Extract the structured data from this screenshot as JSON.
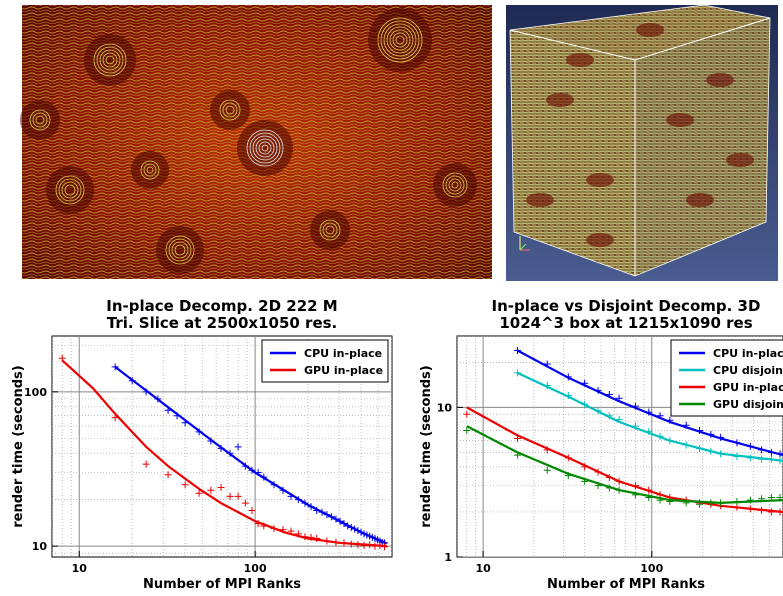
{
  "images": {
    "left_alt": "2D line integral convolution slice of turbulent flow",
    "right_alt": "3D cube rendered with line integral convolution texture",
    "colors": {
      "dark": "#3a0000",
      "red": "#b01800",
      "yellow": "#d8c040",
      "white": "#f0f0f0",
      "bg3d": "#3a4a78"
    }
  },
  "chart_data": [
    {
      "type": "scatter",
      "title": [
        "In-place Decomp. 2D 222 M",
        "Tri. Slice at 2500x1050 res."
      ],
      "xlabel": "Number of MPI Ranks",
      "ylabel": "render time (seconds)",
      "xscale": "log",
      "yscale": "log",
      "xlim": [
        7,
        600
      ],
      "ylim": [
        8.5,
        230
      ],
      "xticks": [
        {
          "value": 10,
          "label": "10"
        },
        {
          "value": 100,
          "label": "100"
        }
      ],
      "yticks": [
        {
          "value": 10,
          "label": "10"
        },
        {
          "value": 100,
          "label": "100"
        }
      ],
      "grid": true,
      "legend_position": "top-right",
      "series": [
        {
          "name": "CPU in-place",
          "color": "#0000ee",
          "points": [
            [
              16,
              145
            ],
            [
              20,
              118
            ],
            [
              24,
              100
            ],
            [
              28,
              90
            ],
            [
              32,
              76
            ],
            [
              36,
              70
            ],
            [
              40,
              63
            ],
            [
              48,
              55
            ],
            [
              56,
              48
            ],
            [
              64,
              43
            ],
            [
              72,
              40
            ],
            [
              80,
              44
            ],
            [
              88,
              33
            ],
            [
              96,
              31
            ],
            [
              104,
              30
            ],
            [
              112,
              28
            ],
            [
              128,
              25
            ],
            [
              144,
              23
            ],
            [
              160,
              21
            ],
            [
              176,
              20
            ],
            [
              192,
              19
            ],
            [
              208,
              18
            ],
            [
              224,
              17
            ],
            [
              240,
              16.6
            ],
            [
              256,
              16
            ],
            [
              272,
              15.5
            ],
            [
              288,
              15
            ],
            [
              304,
              14.5
            ],
            [
              320,
              14
            ],
            [
              336,
              13.5
            ],
            [
              352,
              13.2
            ],
            [
              368,
              12.9
            ],
            [
              384,
              12.6
            ],
            [
              400,
              12.3
            ],
            [
              416,
              12
            ],
            [
              432,
              11.8
            ],
            [
              448,
              11.6
            ],
            [
              464,
              11.4
            ],
            [
              480,
              11.2
            ],
            [
              496,
              11
            ],
            [
              512,
              10.8
            ],
            [
              528,
              10.6
            ],
            [
              544,
              10.5
            ]
          ],
          "fit": [
            [
              16,
              145
            ],
            [
              30,
              84
            ],
            [
              60,
              46
            ],
            [
              100,
              30
            ],
            [
              200,
              18.5
            ],
            [
              400,
              12.3
            ],
            [
              560,
              10.4
            ]
          ]
        },
        {
          "name": "GPU in-place",
          "color": "#ee0000",
          "points": [
            [
              8,
              165
            ],
            [
              16,
              68
            ],
            [
              24,
              34
            ],
            [
              32,
              29
            ],
            [
              40,
              25
            ],
            [
              48,
              22
            ],
            [
              56,
              23
            ],
            [
              64,
              24
            ],
            [
              72,
              21
            ],
            [
              80,
              21
            ],
            [
              88,
              19
            ],
            [
              96,
              17
            ],
            [
              104,
              14
            ],
            [
              112,
              13.5
            ],
            [
              128,
              13
            ],
            [
              144,
              12.8
            ],
            [
              160,
              12.5
            ],
            [
              176,
              12
            ],
            [
              192,
              11.5
            ],
            [
              208,
              11.4
            ],
            [
              224,
              11.2
            ],
            [
              256,
              10.8
            ],
            [
              288,
              10.6
            ],
            [
              320,
              10.5
            ],
            [
              352,
              10.3
            ],
            [
              384,
              10.2
            ],
            [
              416,
              10.1
            ],
            [
              448,
              10.2
            ],
            [
              480,
              10
            ],
            [
              512,
              10.1
            ],
            [
              544,
              9.9
            ]
          ],
          "fit": [
            [
              8,
              160
            ],
            [
              12,
              105
            ],
            [
              16,
              72
            ],
            [
              24,
              44
            ],
            [
              32,
              33
            ],
            [
              48,
              23.5
            ],
            [
              64,
              19
            ],
            [
              100,
              14.5
            ],
            [
              150,
              12.2
            ],
            [
              200,
              11.2
            ],
            [
              300,
              10.5
            ],
            [
              560,
              10
            ]
          ]
        }
      ]
    },
    {
      "type": "scatter",
      "title": [
        "In-place vs Disjoint Decomp. 3D",
        "1024^3 box at 1215x1090 res"
      ],
      "xlabel": "Number of MPI Ranks",
      "ylabel": "render time (seconds)",
      "xscale": "log",
      "yscale": "log",
      "xlim": [
        7,
        600
      ],
      "ylim": [
        1,
        30
      ],
      "xticks": [
        {
          "value": 10,
          "label": "10"
        },
        {
          "value": 100,
          "label": "100"
        }
      ],
      "yticks": [
        {
          "value": 1,
          "label": "1"
        },
        {
          "value": 10,
          "label": "10"
        }
      ],
      "grid": true,
      "legend_position": "top-right",
      "series": [
        {
          "name": "CPU in-place",
          "color": "#0000ee",
          "points": [
            [
              16,
              24
            ],
            [
              24,
              19.5
            ],
            [
              32,
              16
            ],
            [
              40,
              14.5
            ],
            [
              48,
              13
            ],
            [
              56,
              12.2
            ],
            [
              64,
              11.5
            ],
            [
              80,
              10.2
            ],
            [
              96,
              9.3
            ],
            [
              112,
              8.8
            ],
            [
              128,
              8.2
            ],
            [
              160,
              7.6
            ],
            [
              192,
              7
            ],
            [
              224,
              6.6
            ],
            [
              256,
              6.3
            ],
            [
              320,
              5.8
            ],
            [
              384,
              5.5
            ],
            [
              448,
              5.2
            ],
            [
              512,
              5
            ],
            [
              576,
              4.9
            ]
          ],
          "fit": [
            [
              16,
              24
            ],
            [
              32,
              15.8
            ],
            [
              64,
              11
            ],
            [
              128,
              8
            ],
            [
              256,
              6.2
            ],
            [
              600,
              4.8
            ]
          ]
        },
        {
          "name": "CPU disjoint",
          "color": "#00c0c0",
          "points": [
            [
              16,
              17
            ],
            [
              24,
              14
            ],
            [
              32,
              12
            ],
            [
              40,
              10.5
            ],
            [
              48,
              9.5
            ],
            [
              56,
              8.8
            ],
            [
              64,
              8.3
            ],
            [
              80,
              7.5
            ],
            [
              96,
              6.9
            ],
            [
              112,
              6.4
            ],
            [
              128,
              6
            ],
            [
              160,
              5.6
            ],
            [
              192,
              5.3
            ],
            [
              224,
              5.1
            ],
            [
              256,
              4.9
            ],
            [
              320,
              4.7
            ],
            [
              384,
              4.6
            ],
            [
              448,
              4.5
            ],
            [
              512,
              4.5
            ],
            [
              576,
              4.4
            ]
          ],
          "fit": [
            [
              16,
              17
            ],
            [
              32,
              11.8
            ],
            [
              64,
              8
            ],
            [
              128,
              6
            ],
            [
              256,
              4.9
            ],
            [
              600,
              4.4
            ]
          ]
        },
        {
          "name": "GPU in-place",
          "color": "#ee0000",
          "points": [
            [
              8,
              9
            ],
            [
              16,
              6.2
            ],
            [
              24,
              5.2
            ],
            [
              32,
              4.6
            ],
            [
              40,
              4
            ],
            [
              48,
              3.7
            ],
            [
              56,
              3.4
            ],
            [
              64,
              3.2
            ],
            [
              80,
              3
            ],
            [
              96,
              2.8
            ],
            [
              112,
              2.6
            ],
            [
              128,
              2.5
            ],
            [
              160,
              2.4
            ],
            [
              192,
              2.3
            ],
            [
              224,
              2.25
            ],
            [
              256,
              2.2
            ],
            [
              320,
              2.15
            ],
            [
              384,
              2.1
            ],
            [
              448,
              2.05
            ],
            [
              512,
              2
            ],
            [
              576,
              2
            ]
          ],
          "fit": [
            [
              8,
              10
            ],
            [
              16,
              6.5
            ],
            [
              32,
              4.6
            ],
            [
              64,
              3.2
            ],
            [
              128,
              2.5
            ],
            [
              256,
              2.2
            ],
            [
              600,
              2
            ]
          ]
        },
        {
          "name": "GPU disjoint",
          "color": "#008800",
          "points": [
            [
              8,
              7
            ],
            [
              16,
              4.8
            ],
            [
              24,
              3.8
            ],
            [
              32,
              3.5
            ],
            [
              40,
              3.2
            ],
            [
              48,
              3
            ],
            [
              56,
              2.9
            ],
            [
              64,
              2.8
            ],
            [
              80,
              2.6
            ],
            [
              96,
              2.5
            ],
            [
              112,
              2.4
            ],
            [
              128,
              2.35
            ],
            [
              160,
              2.3
            ],
            [
              192,
              2.25
            ],
            [
              224,
              2.3
            ],
            [
              256,
              2.3
            ],
            [
              320,
              2.35
            ],
            [
              384,
              2.4
            ],
            [
              448,
              2.45
            ],
            [
              512,
              2.5
            ],
            [
              576,
              2.5
            ]
          ],
          "fit": [
            [
              8,
              7.5
            ],
            [
              16,
              5
            ],
            [
              32,
              3.6
            ],
            [
              64,
              2.8
            ],
            [
              128,
              2.4
            ],
            [
              256,
              2.3
            ],
            [
              600,
              2.4
            ]
          ]
        }
      ]
    }
  ]
}
